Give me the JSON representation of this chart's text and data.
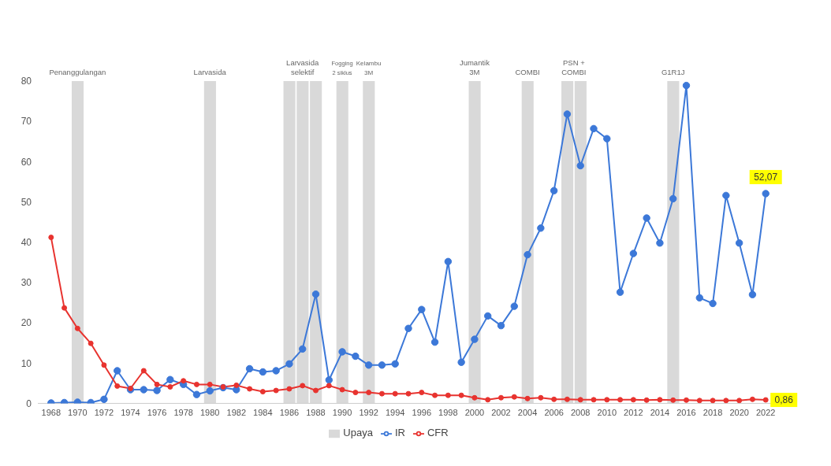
{
  "chart_data": {
    "type": "line",
    "x": [
      1968,
      1969,
      1970,
      1971,
      1972,
      1973,
      1974,
      1975,
      1976,
      1977,
      1978,
      1979,
      1980,
      1981,
      1982,
      1983,
      1984,
      1985,
      1986,
      1987,
      1988,
      1989,
      1990,
      1991,
      1992,
      1993,
      1994,
      1995,
      1996,
      1997,
      1998,
      1999,
      2000,
      2001,
      2002,
      2003,
      2004,
      2005,
      2006,
      2007,
      2008,
      2009,
      2010,
      2011,
      2012,
      2013,
      2014,
      2015,
      2016,
      2017,
      2018,
      2019,
      2020,
      2021,
      2022
    ],
    "series": [
      {
        "name": "Upaya",
        "type": "bar",
        "color": "#d9d9d9",
        "values": [
          null,
          null,
          80,
          null,
          null,
          null,
          null,
          null,
          null,
          null,
          null,
          null,
          80,
          null,
          null,
          null,
          null,
          null,
          80,
          80,
          80,
          null,
          80,
          null,
          80,
          null,
          null,
          null,
          null,
          null,
          null,
          null,
          80,
          null,
          null,
          null,
          80,
          null,
          null,
          80,
          80,
          null,
          null,
          null,
          null,
          null,
          null,
          80,
          null,
          null,
          null,
          null,
          null,
          null,
          null
        ]
      },
      {
        "name": "IR",
        "color": "#3c78d8",
        "values": [
          0.1,
          0.2,
          0.3,
          0.2,
          1,
          8.1,
          3.4,
          3.4,
          3.2,
          5.9,
          4.7,
          2.2,
          3.1,
          3.9,
          3.4,
          8.6,
          7.8,
          8.1,
          9.8,
          13.5,
          27.1,
          5.8,
          12.8,
          11.7,
          9.5,
          9.5,
          9.8,
          18.6,
          23.3,
          15.2,
          35.2,
          10.2,
          15.9,
          21.7,
          19.3,
          24.1,
          36.9,
          43.5,
          52.8,
          71.8,
          59,
          68.2,
          65.7,
          27.6,
          37.2,
          46,
          39.8,
          50.8,
          78.9,
          26.2,
          24.8,
          51.6,
          39.8,
          27,
          52.07
        ],
        "value_labels": [
          null,
          null,
          null,
          null,
          null,
          null,
          null,
          null,
          null,
          null,
          null,
          null,
          null,
          null,
          null,
          null,
          null,
          null,
          null,
          null,
          null,
          null,
          null,
          null,
          null,
          null,
          null,
          null,
          null,
          null,
          null,
          null,
          null,
          null,
          null,
          null,
          null,
          null,
          null,
          null,
          null,
          null,
          null,
          null,
          null,
          null,
          null,
          null,
          null,
          null,
          null,
          null,
          null,
          null,
          "52,07"
        ]
      },
      {
        "name": "CFR",
        "color": "#e8332f",
        "values": [
          41.2,
          23.7,
          18.6,
          14.9,
          9.5,
          4.3,
          3.7,
          8.1,
          4.7,
          4.1,
          5.6,
          4.7,
          4.7,
          4.1,
          4.5,
          3.6,
          2.9,
          3.2,
          3.6,
          4.4,
          3.2,
          4.4,
          3.4,
          2.7,
          2.7,
          2.4,
          2.4,
          2.4,
          2.7,
          2,
          2,
          2,
          1.4,
          0.9,
          1.4,
          1.6,
          1.2,
          1.4,
          1,
          1,
          0.9,
          0.9,
          0.9,
          0.9,
          0.9,
          0.8,
          0.9,
          0.8,
          0.8,
          0.7,
          0.7,
          0.7,
          0.7,
          1,
          0.86
        ],
        "value_labels": [
          null,
          null,
          null,
          null,
          null,
          null,
          null,
          null,
          null,
          null,
          null,
          null,
          null,
          null,
          null,
          null,
          null,
          null,
          null,
          null,
          null,
          null,
          null,
          null,
          null,
          null,
          null,
          null,
          null,
          null,
          null,
          null,
          null,
          null,
          null,
          null,
          null,
          null,
          null,
          null,
          null,
          null,
          null,
          null,
          null,
          null,
          null,
          null,
          null,
          null,
          null,
          null,
          null,
          null,
          "0,86"
        ]
      }
    ],
    "xlim": [
      1967,
      2023
    ],
    "xticks": [
      1968,
      1970,
      1972,
      1974,
      1976,
      1978,
      1980,
      1982,
      1984,
      1986,
      1988,
      1990,
      1992,
      1994,
      1996,
      1998,
      2000,
      2002,
      2004,
      2006,
      2008,
      2010,
      2012,
      2014,
      2016,
      2018,
      2020,
      2022
    ],
    "ylim": [
      0,
      80
    ],
    "yticks": [
      0,
      10,
      20,
      30,
      40,
      50,
      60,
      70,
      80
    ],
    "annotations": [
      {
        "text": "Penanggulangan",
        "x": 1970,
        "y": 80
      },
      {
        "text": "Larvasida",
        "x": 1980,
        "y": 80
      },
      {
        "text": "Larvasida\nselektif",
        "x": 1987,
        "y": 80
      },
      {
        "text": "Fogging\n2 siklus",
        "x": 1990,
        "y": 80
      },
      {
        "text": "Kelambu\n3M",
        "x": 1992,
        "y": 80
      },
      {
        "text": "Jumantik\n3M",
        "x": 2000,
        "y": 80
      },
      {
        "text": "COMBI",
        "x": 2004,
        "y": 80
      },
      {
        "text": "PSN +\nCOMBI",
        "x": 2007.5,
        "y": 80
      },
      {
        "text": "G1R1J",
        "x": 2015,
        "y": 80
      }
    ],
    "marker": "circle",
    "line_style": "solid",
    "grid": false,
    "legend": "bottom"
  }
}
